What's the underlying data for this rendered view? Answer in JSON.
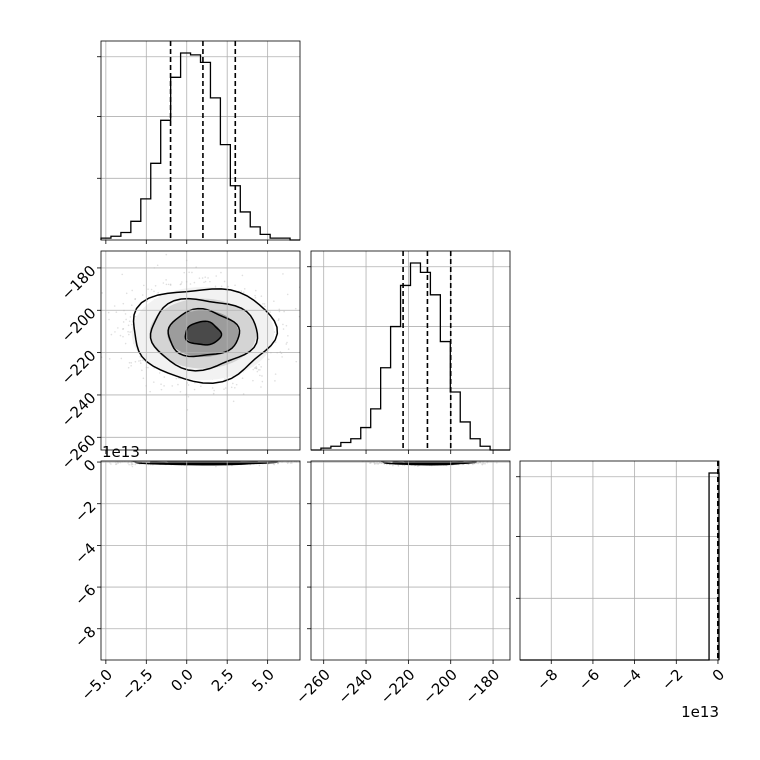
{
  "chart_data": {
    "type": "corner",
    "parameters": 3,
    "grid": true,
    "axes": {
      "p0": {
        "ticks": [
          -5.0,
          -2.5,
          0.0,
          2.5,
          5.0
        ],
        "tick_labels": [
          "−5.0",
          "−2.5",
          "0.0",
          "2.5",
          "5.0"
        ],
        "range": [
          -5.3,
          7.0
        ]
      },
      "p1": {
        "ticks": [
          -260,
          -240,
          -220,
          -200,
          -180
        ],
        "tick_labels": [
          "−260",
          "−240",
          "−220",
          "−200",
          "−180"
        ],
        "range": [
          -266,
          -172
        ]
      },
      "p2": {
        "ticks": [
          -8,
          -6,
          -4,
          -2,
          0
        ],
        "tick_labels": [
          "−8",
          "−6",
          "−4",
          "−2",
          "0"
        ],
        "range": [
          -9.5,
          0.05
        ],
        "offset_label": "1e13"
      }
    },
    "histograms": [
      {
        "param": "p0",
        "bins": [
          -5.3,
          -4.685,
          -4.07,
          -3.455,
          -2.84,
          -2.225,
          -1.61,
          -0.995,
          -0.38,
          0.235,
          0.85,
          1.465,
          2.08,
          2.695,
          3.31,
          3.925,
          4.54,
          5.155,
          5.77,
          6.385,
          7.0
        ],
        "counts": [
          1,
          2,
          4,
          10,
          22,
          41,
          64,
          87,
          100,
          99,
          95,
          76,
          51,
          29,
          15,
          7,
          3,
          1,
          1,
          0
        ],
        "quantiles": [
          -1.0,
          1.0,
          3.0
        ]
      },
      {
        "param": "p1",
        "bins": [
          -266,
          -261.3,
          -256.6,
          -251.9,
          -247.2,
          -242.5,
          -237.8,
          -233.1,
          -228.4,
          -223.7,
          -219.0,
          -214.3,
          -209.6,
          -204.9,
          -200.2,
          -195.5,
          -190.8,
          -186.1,
          -181.4,
          -176.7,
          -172
        ],
        "counts": [
          0,
          1,
          2,
          4,
          6,
          12,
          22,
          44,
          66,
          88,
          100,
          95,
          83,
          58,
          31,
          15,
          6,
          2,
          0,
          0
        ],
        "quantiles": [
          -222.5,
          -211.0,
          -200.0
        ]
      },
      {
        "param": "p2",
        "bins": [
          -9.5,
          -9.0225,
          -8.545,
          -8.0675,
          -7.59,
          -7.1125,
          -6.635,
          -6.1575,
          -5.68,
          -5.2025,
          -4.725,
          -4.2475,
          -3.77,
          -3.2925,
          -2.815,
          -2.3375,
          -1.86,
          -1.3825,
          -0.905,
          -0.4275,
          0.05
        ],
        "counts": [
          0,
          0,
          0,
          0,
          0,
          0,
          0,
          0,
          0,
          0,
          0,
          0,
          0,
          0,
          0,
          0,
          0,
          0,
          0,
          100
        ],
        "quantiles": [
          0.0,
          0.0,
          0.0
        ]
      }
    ],
    "joint_distributions": [
      {
        "x": "p0",
        "y": "p1",
        "mean": [
          1.0,
          -211.0
        ],
        "sd": [
          2.2,
          11.0
        ],
        "contours": [
          0.5,
          1.0,
          1.5,
          2.0
        ]
      },
      {
        "x": "p0",
        "y": "p2",
        "mean": [
          1.0,
          0.0
        ],
        "sd": [
          2.2,
          0.06
        ],
        "contours": [
          0.5,
          1.0,
          1.5,
          2.0
        ]
      },
      {
        "x": "p1",
        "y": "p2",
        "mean": [
          -211.0,
          0.0
        ],
        "sd": [
          11.0,
          0.06
        ],
        "contours": [
          0.5,
          1.0,
          1.5,
          2.0
        ]
      }
    ]
  }
}
